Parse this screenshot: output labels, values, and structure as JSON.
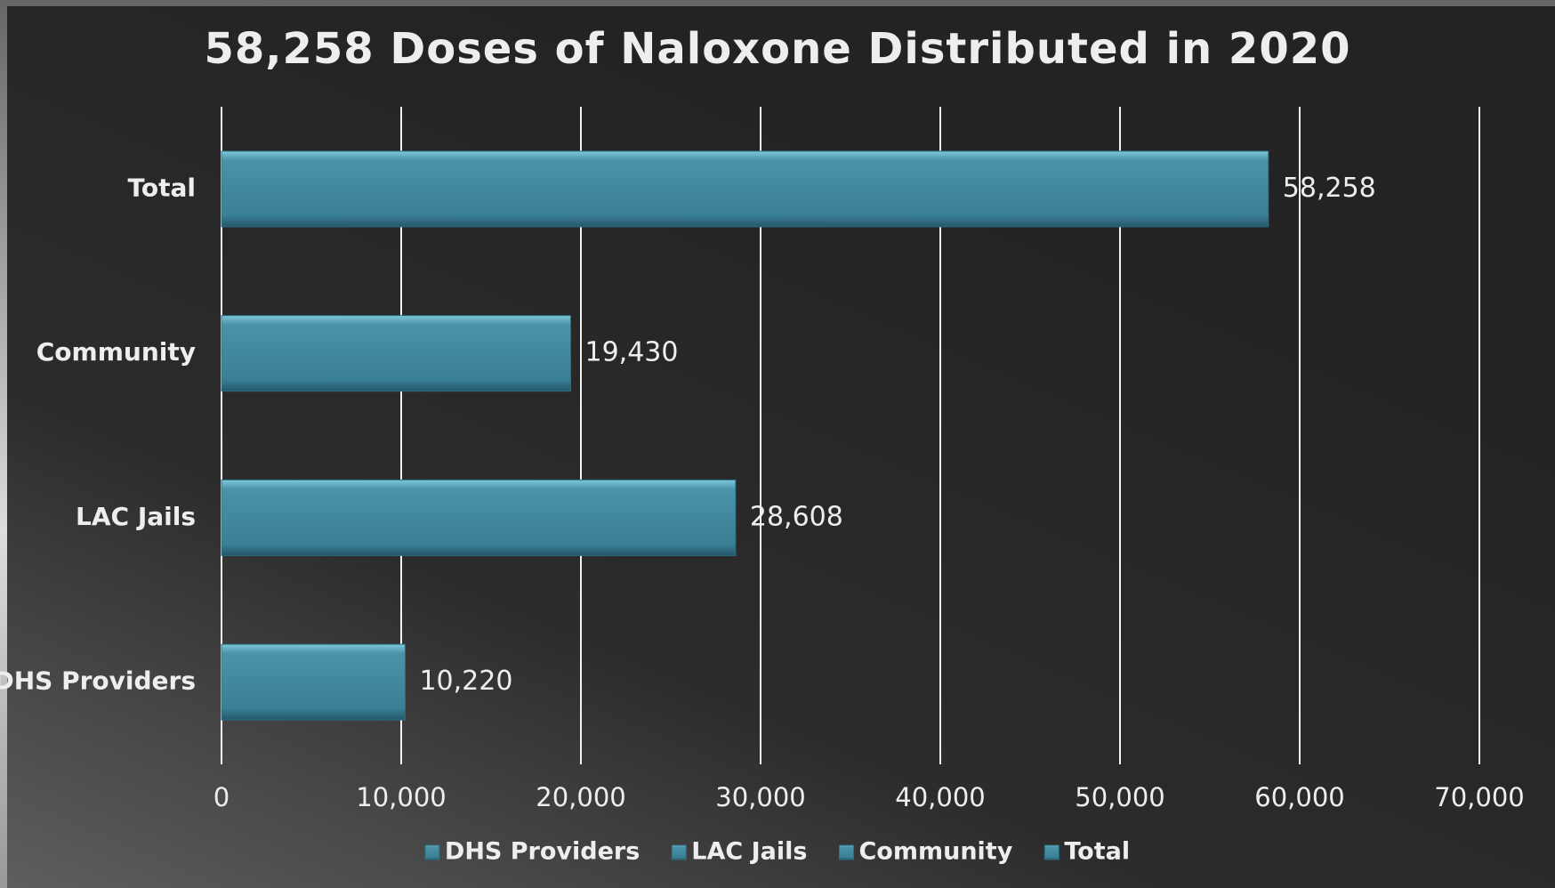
{
  "chart_data": {
    "type": "bar",
    "orientation": "horizontal",
    "title": "58,258 Doses of Naloxone Distributed in 2020",
    "categories": [
      "DHS Providers",
      "LAC Jails",
      "Community",
      "Total"
    ],
    "values": [
      10220,
      28608,
      19430,
      58258
    ],
    "value_labels": [
      "10,220",
      "28,608",
      "19,430",
      "58,258"
    ],
    "color": "#3f8aa1",
    "xlim": [
      0,
      70000
    ],
    "xticks": [
      0,
      {
        "value": 10000,
        "label": "10,000"
      },
      {
        "value": 20000,
        "label": "20,000"
      },
      {
        "value": 30000,
        "label": "30,000"
      },
      {
        "value": 40000,
        "label": "40,000"
      },
      {
        "value": 50000,
        "label": "50,000"
      },
      {
        "value": 60000,
        "label": "60,000"
      },
      {
        "value": 70000,
        "label": "70,000"
      }
    ],
    "grid": true,
    "legend": "bottom"
  }
}
